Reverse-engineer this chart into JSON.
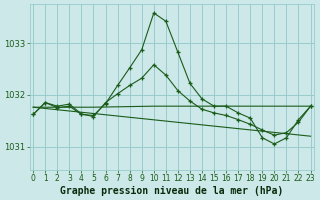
{
  "title": "Graphe pression niveau de la mer (hPa)",
  "bg_color": "#cce8e8",
  "grid_color": "#99cccc",
  "line_color": "#1a5c1a",
  "xlim": [
    -0.3,
    23.3
  ],
  "ylim": [
    1030.55,
    1033.75
  ],
  "yticks": [
    1031,
    1032,
    1033
  ],
  "xticks": [
    0,
    1,
    2,
    3,
    4,
    5,
    6,
    7,
    8,
    9,
    10,
    11,
    12,
    13,
    14,
    15,
    16,
    17,
    18,
    19,
    20,
    21,
    22,
    23
  ],
  "series_A": {
    "x": [
      0,
      1,
      2,
      3,
      4,
      5,
      6,
      7,
      8,
      9,
      10,
      11,
      12,
      13,
      14,
      15,
      16,
      17,
      18,
      19,
      20,
      21,
      22,
      23
    ],
    "y": [
      1031.62,
      1031.85,
      1031.75,
      1031.78,
      1031.62,
      1031.6,
      1031.83,
      1032.18,
      1032.52,
      1032.87,
      1033.58,
      1033.42,
      1032.82,
      1032.22,
      1031.92,
      1031.78,
      1031.78,
      1031.65,
      1031.55,
      1031.17,
      1031.05,
      1031.17,
      1031.52,
      1031.78
    ]
  },
  "series_B": {
    "x": [
      0,
      1,
      2,
      3,
      4,
      5,
      6,
      7,
      8,
      9,
      10,
      11,
      12,
      13,
      14,
      15,
      16,
      17,
      18,
      19,
      20,
      21,
      22,
      23
    ],
    "y": [
      1031.62,
      1031.85,
      1031.78,
      1031.82,
      1031.63,
      1031.58,
      1031.85,
      1032.02,
      1032.18,
      1032.32,
      1032.58,
      1032.38,
      1032.08,
      1031.88,
      1031.72,
      1031.65,
      1031.6,
      1031.52,
      1031.43,
      1031.32,
      1031.22,
      1031.27,
      1031.47,
      1031.78
    ]
  },
  "series_C": {
    "x": [
      0,
      5,
      10,
      15,
      17,
      22,
      23
    ],
    "y": [
      1031.76,
      1031.76,
      1031.78,
      1031.78,
      1031.78,
      1031.78,
      1031.78
    ]
  },
  "series_D": {
    "x": [
      0,
      23
    ],
    "y": [
      1031.76,
      1031.2
    ]
  },
  "tick_fontsize": 5.5,
  "xlabel_fontsize": 7.0
}
